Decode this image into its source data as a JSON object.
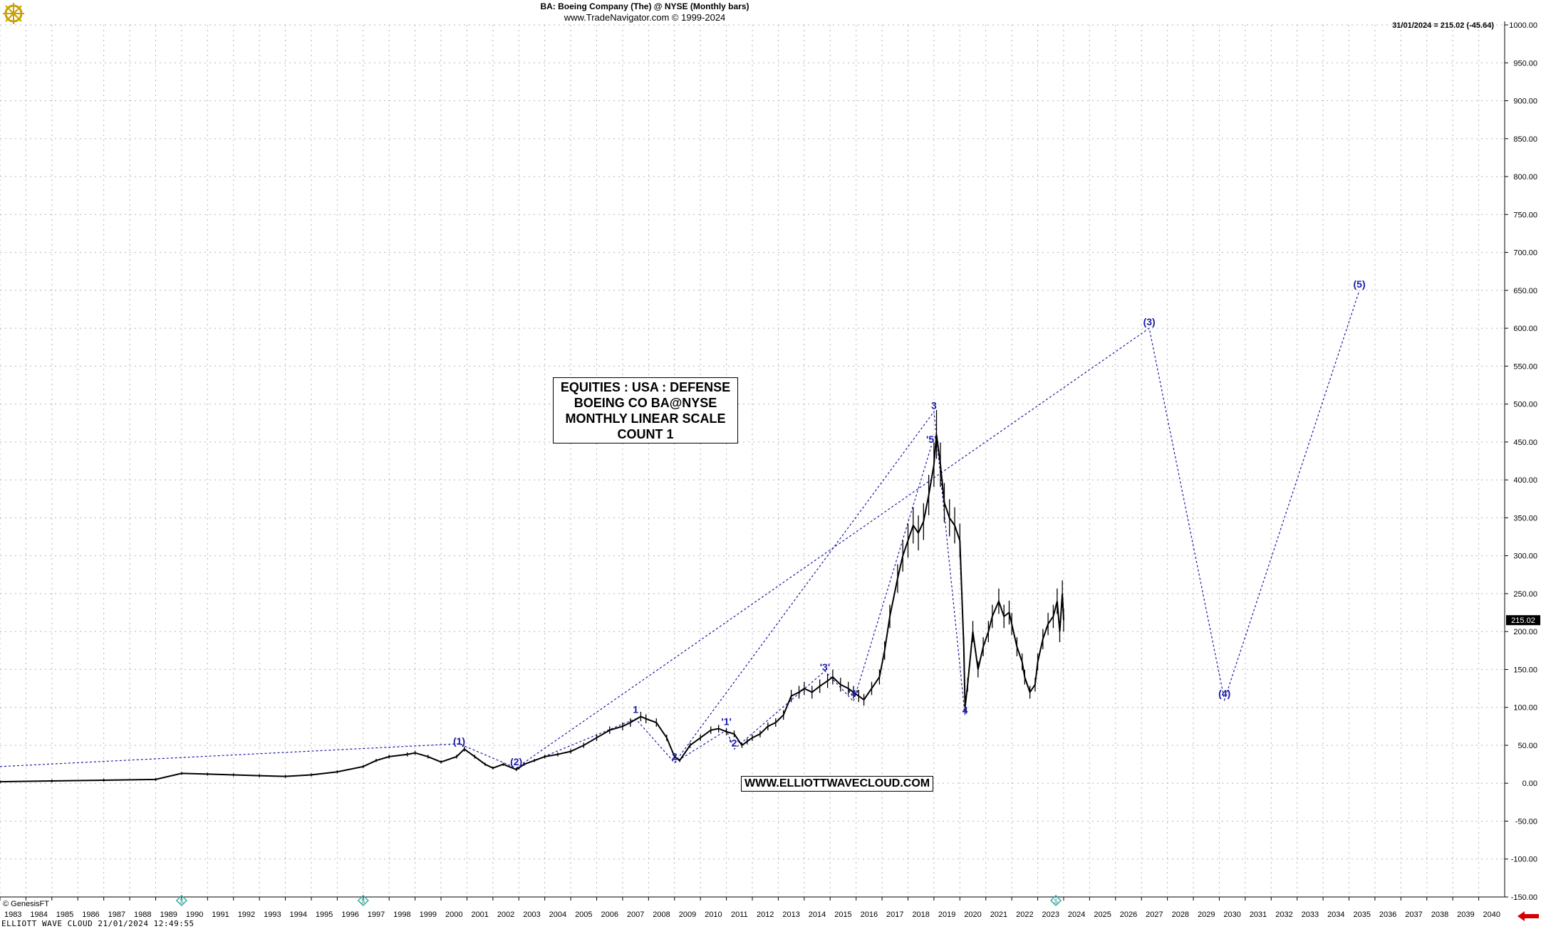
{
  "header": {
    "title": "BA:  Boeing Company (The) @ NYSE  (Monthly bars)",
    "site": "www.TradeNavigator.com © 1999-2024",
    "last_quote": "31/01/2024 = 215.02 (-45.64)"
  },
  "info_box": [
    "EQUITIES : USA : DEFENSE",
    "BOEING CO BA@NYSE",
    "MONTHLY LINEAR SCALE",
    "COUNT 1"
  ],
  "website_box": "WWW.ELLIOTTWAVECLOUD.COM",
  "copyright": "© GenesisFT",
  "footer": "ELLIOTT WAVE CLOUD   21/01/2024 12:49:55",
  "colors": {
    "price": "#000000",
    "wave": "#1a1aa6",
    "grid": "#b5b5b5",
    "last_price_bg": "#000000",
    "nav_arrow": "#d40000",
    "logo": "#c9a000",
    "marker": "#3aa7a0"
  },
  "icons": {
    "logo": "ship-wheel-logo-icon",
    "marker": "dollar-marker-icon",
    "nav": "arrow-left-icon"
  },
  "chart_data": {
    "type": "line",
    "title": "BA:  Boeing Company (The) @ NYSE  (Monthly bars)",
    "xlabel": "",
    "ylabel": "",
    "xlim": [
      1983.0,
      2041.0
    ],
    "ylim": [
      -150,
      1000
    ],
    "grid": true,
    "x_ticks": [
      "1983",
      "1984",
      "1985",
      "1986",
      "1987",
      "1988",
      "1989",
      "1990",
      "1991",
      "1992",
      "1993",
      "1994",
      "1995",
      "1996",
      "1997",
      "1998",
      "1999",
      "2000",
      "2001",
      "2002",
      "2003",
      "2004",
      "2005",
      "2006",
      "2007",
      "2008",
      "2009",
      "2010",
      "2011",
      "2012",
      "2013",
      "2014",
      "2015",
      "2016",
      "2017",
      "2018",
      "2019",
      "2020",
      "2021",
      "2022",
      "2023",
      "2024",
      "2025",
      "2026",
      "2027",
      "2028",
      "2029",
      "2030",
      "2031",
      "2032",
      "2033",
      "2034",
      "2035",
      "2036",
      "2037",
      "2038",
      "2039",
      "2040"
    ],
    "y_ticks": [
      "1000.00",
      "950.00",
      "900.00",
      "850.00",
      "800.00",
      "750.00",
      "700.00",
      "650.00",
      "600.00",
      "550.00",
      "500.00",
      "450.00",
      "400.00",
      "350.00",
      "300.00",
      "250.00",
      "200.00",
      "150.00",
      "100.00",
      "50.00",
      "0.00",
      "-50.00",
      "-100.00",
      "-150.00"
    ],
    "last_price_label": "215.02",
    "series": [
      {
        "name": "BA",
        "x": [
          1983.0,
          1985.0,
          1987.0,
          1989.0,
          1990.0,
          1991.0,
          1992.0,
          1993.0,
          1994.0,
          1995.0,
          1996.0,
          1997.0,
          1997.5,
          1998.0,
          1998.7,
          1999.0,
          1999.5,
          2000.0,
          2000.6,
          2000.9,
          2001.3,
          2001.7,
          2002.0,
          2002.4,
          2002.9,
          2003.0,
          2003.2,
          2003.6,
          2004.0,
          2004.5,
          2005.0,
          2005.5,
          2006.0,
          2006.5,
          2007.0,
          2007.3,
          2007.7,
          2007.9,
          2008.3,
          2008.7,
          2009.0,
          2009.2,
          2009.6,
          2010.0,
          2010.4,
          2010.7,
          2011.0,
          2011.3,
          2011.6,
          2011.8,
          2012.0,
          2012.3,
          2012.6,
          2012.9,
          2013.2,
          2013.5,
          2013.8,
          2014.0,
          2014.3,
          2014.6,
          2014.9,
          2015.1,
          2015.4,
          2015.7,
          2015.9,
          2016.1,
          2016.3,
          2016.6,
          2016.9,
          2017.1,
          2017.3,
          2017.6,
          2017.8,
          2018.0,
          2018.2,
          2018.4,
          2018.6,
          2018.8,
          2019.0,
          2019.1,
          2019.25,
          2019.4,
          2019.6,
          2019.8,
          2020.0,
          2020.15,
          2020.2,
          2020.3,
          2020.5,
          2020.7,
          2020.9,
          2021.1,
          2021.25,
          2021.5,
          2021.7,
          2021.9,
          2022.0,
          2022.2,
          2022.4,
          2022.5,
          2022.7,
          2022.9,
          2023.0,
          2023.2,
          2023.4,
          2023.6,
          2023.75,
          2023.85,
          2023.95,
          2024.0
        ],
        "values": [
          2,
          3,
          4,
          5,
          13,
          12,
          11,
          10,
          9,
          11,
          15,
          22,
          30,
          35,
          38,
          40,
          35,
          28,
          35,
          45,
          35,
          25,
          20,
          25,
          18,
          20,
          25,
          30,
          35,
          38,
          42,
          50,
          60,
          70,
          75,
          80,
          88,
          85,
          80,
          60,
          35,
          30,
          50,
          60,
          70,
          72,
          68,
          65,
          50,
          55,
          60,
          65,
          75,
          80,
          90,
          115,
          120,
          125,
          120,
          128,
          135,
          140,
          130,
          125,
          120,
          115,
          110,
          125,
          140,
          175,
          220,
          270,
          300,
          320,
          340,
          330,
          345,
          380,
          420,
          460,
          420,
          370,
          350,
          340,
          320,
          180,
          100,
          130,
          200,
          150,
          180,
          200,
          220,
          240,
          220,
          225,
          210,
          180,
          160,
          140,
          120,
          130,
          160,
          190,
          210,
          220,
          240,
          200,
          250,
          215.02
        ]
      }
    ],
    "wave_labels": [
      {
        "label": "(1)",
        "x": 2000.7,
        "y": 47
      },
      {
        "label": "(2)",
        "x": 2002.9,
        "y": 20
      },
      {
        "label": "1",
        "x": 2007.5,
        "y": 89
      },
      {
        "label": "2",
        "x": 2009.0,
        "y": 27
      },
      {
        "label": "'1'",
        "x": 2011.0,
        "y": 73
      },
      {
        "label": "'2'",
        "x": 2011.3,
        "y": 45
      },
      {
        "label": "'3'",
        "x": 2014.8,
        "y": 145
      },
      {
        "label": "'4'",
        "x": 2015.9,
        "y": 110
      },
      {
        "label": "'5'",
        "x": 2018.9,
        "y": 445
      },
      {
        "label": "3",
        "x": 2019.0,
        "y": 490
      },
      {
        "label": "4",
        "x": 2020.2,
        "y": 88
      },
      {
        "label": "(3)",
        "x": 2027.3,
        "y": 600
      },
      {
        "label": "(4)",
        "x": 2030.2,
        "y": 110
      },
      {
        "label": "(5)",
        "x": 2035.4,
        "y": 650
      }
    ],
    "wave_paths": [
      {
        "name": "primary-trendline",
        "x": [
          1983.0,
          2000.7,
          2002.9,
          2027.3,
          2030.2,
          2035.4
        ],
        "y": [
          22,
          52,
          20,
          600,
          110,
          650
        ]
      },
      {
        "name": "intermediate-waves",
        "x": [
          2002.9,
          2007.5,
          2009.0,
          2019.0,
          2020.2
        ],
        "y": [
          20,
          85,
          27,
          490,
          88
        ]
      },
      {
        "name": "minor-waves",
        "x": [
          2009.0,
          2011.0,
          2011.3,
          2014.8,
          2015.9,
          2018.9
        ],
        "y": [
          27,
          70,
          45,
          148,
          108,
          445
        ]
      }
    ],
    "markers": [
      {
        "x": 1990.0
      },
      {
        "x": 1997.0
      },
      {
        "x": 2023.7
      }
    ]
  }
}
